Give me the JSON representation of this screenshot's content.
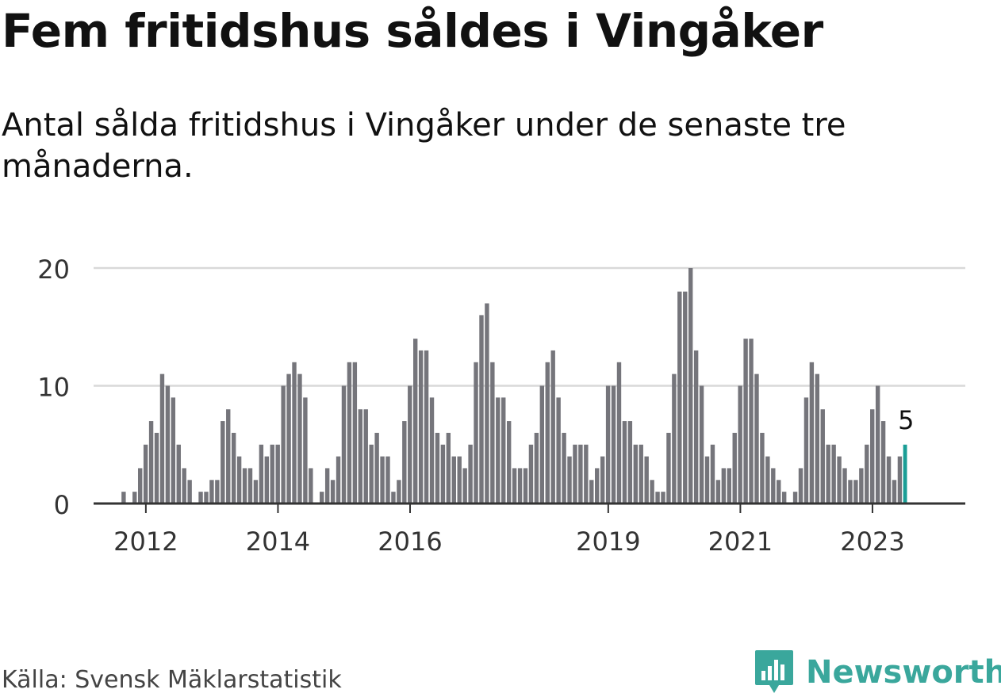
{
  "header": {
    "title": "Fem fritidshus såldes i Vingåker",
    "subtitle": "Antal sålda fritidshus i Vingåker under de senaste tre månaderna."
  },
  "footer": {
    "source": "Källa: Svensk Mäklarstatistik",
    "brand": "Newsworthy"
  },
  "colors": {
    "bar": "#75757b",
    "highlight": "#1a9e96",
    "grid": "#d9d9d9",
    "axis": "#333333",
    "brand": "#3aa79c"
  },
  "chart_data": {
    "type": "bar",
    "ylim": [
      0,
      20
    ],
    "y_ticks": [
      0,
      10,
      20
    ],
    "x_tick_labels": [
      "2012",
      "2014",
      "2016",
      "2019",
      "2021",
      "2023"
    ],
    "x_tick_positions": [
      2012,
      2014,
      2016,
      2019,
      2021,
      2023
    ],
    "grid": true,
    "bar_label": {
      "value": "5"
    },
    "highlight_last": true,
    "first_month": "2011-11",
    "last_month": "2023-11",
    "values": [
      0,
      0,
      1,
      0,
      1,
      3,
      5,
      7,
      6,
      11,
      10,
      9,
      5,
      3,
      2,
      0,
      1,
      1,
      2,
      2,
      7,
      8,
      6,
      4,
      3,
      3,
      2,
      5,
      4,
      5,
      5,
      10,
      11,
      12,
      11,
      9,
      3,
      0,
      1,
      3,
      2,
      4,
      10,
      12,
      12,
      8,
      8,
      5,
      6,
      4,
      4,
      1,
      2,
      7,
      10,
      14,
      13,
      13,
      9,
      6,
      5,
      6,
      4,
      4,
      3,
      5,
      12,
      16,
      17,
      12,
      9,
      9,
      7,
      3,
      3,
      3,
      5,
      6,
      10,
      12,
      13,
      9,
      6,
      4,
      5,
      5,
      5,
      2,
      3,
      4,
      10,
      10,
      12,
      7,
      7,
      5,
      5,
      4,
      2,
      1,
      1,
      6,
      11,
      18,
      18,
      20,
      13,
      10,
      4,
      5,
      2,
      3,
      3,
      6,
      10,
      14,
      14,
      11,
      6,
      4,
      3,
      2,
      1,
      0,
      1,
      3,
      9,
      12,
      11,
      8,
      5,
      5,
      4,
      3,
      2,
      2,
      3,
      5,
      8,
      10,
      7,
      4,
      2,
      4,
      5
    ]
  }
}
